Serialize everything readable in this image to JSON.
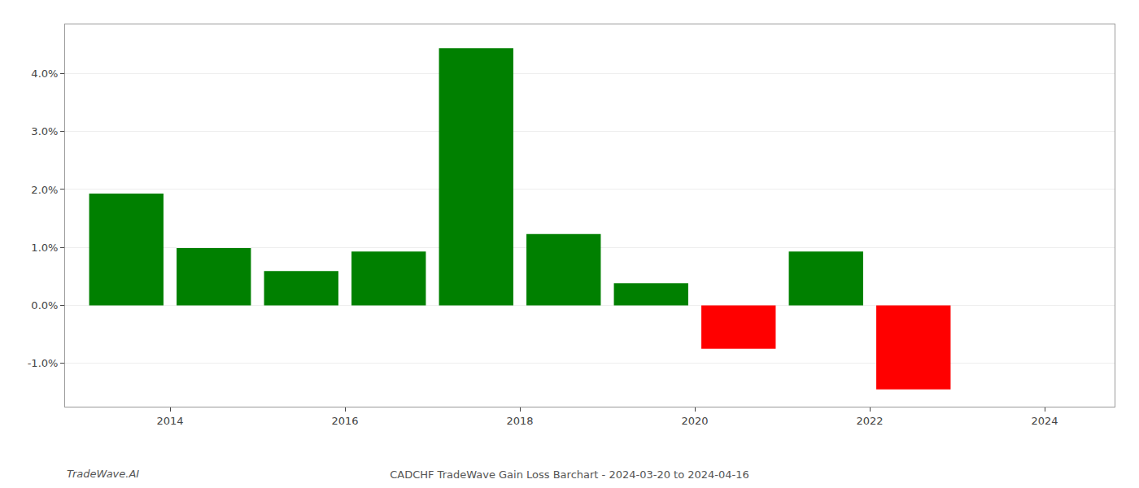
{
  "chart_data": {
    "type": "bar",
    "title": "CADCHF TradeWave Gain Loss Barchart - 2024-03-20 to 2024-04-16",
    "annotations": [
      "TradeWave.AI"
    ],
    "x": [
      2013.5,
      2014.5,
      2015.5,
      2016.5,
      2017.5,
      2018.5,
      2019.5,
      2020.5,
      2021.5,
      2022.5,
      2023.5
    ],
    "values": [
      1.93,
      0.99,
      0.59,
      0.93,
      4.44,
      1.23,
      0.38,
      -0.75,
      0.93,
      -1.45,
      0.0
    ],
    "colors": [
      "#008000",
      "#008000",
      "#008000",
      "#008000",
      "#008000",
      "#008000",
      "#008000",
      "#ff0000",
      "#008000",
      "#ff0000",
      "#008000"
    ],
    "xlim": [
      2012.8,
      2024.8
    ],
    "xticks": [
      2014,
      2016,
      2018,
      2020,
      2022,
      2024
    ],
    "ylim": [
      -1.75,
      4.85
    ],
    "yticks": [
      {
        "value": -1.0,
        "label": "-1.0%"
      },
      {
        "value": 0.0,
        "label": "0.0%"
      },
      {
        "value": 1.0,
        "label": "1.0%"
      },
      {
        "value": 2.0,
        "label": "2.0%"
      },
      {
        "value": 3.0,
        "label": "3.0%"
      },
      {
        "value": 4.0,
        "label": "4.0%"
      }
    ],
    "grid": true
  }
}
